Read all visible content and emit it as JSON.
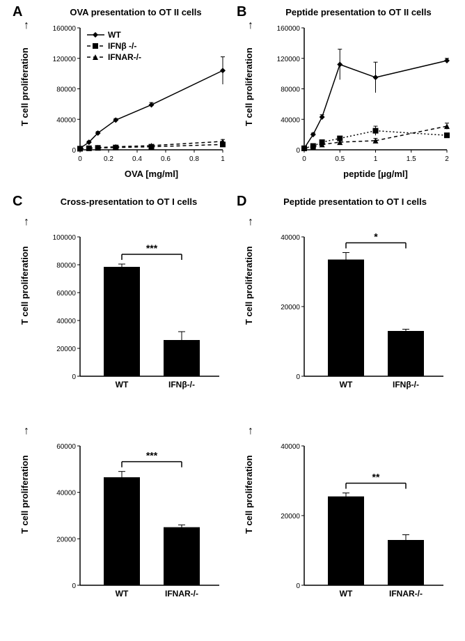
{
  "colors": {
    "line": "#000000",
    "bar": "#000000",
    "bg": "#ffffff",
    "text": "#000000"
  },
  "panel_labels": {
    "A": "A",
    "B": "B",
    "C": "C",
    "D": "D"
  },
  "panelA": {
    "title": "OVA presentation to OT II cells",
    "ylabel": "T cell proliferation",
    "xlabel": "OVA [mg/ml]",
    "xlim": [
      0,
      1.0
    ],
    "ylim": [
      0,
      160000
    ],
    "xticks": [
      0,
      0.2,
      0.4,
      0.6,
      0.8,
      1
    ],
    "yticks": [
      0,
      40000,
      80000,
      120000,
      160000
    ],
    "legend": [
      {
        "name": "WT",
        "marker": "diamond",
        "dash": "solid"
      },
      {
        "name": "IFNβ -/-",
        "marker": "square",
        "dash": "dash"
      },
      {
        "name": "IFNAR-/-",
        "marker": "triangle",
        "dash": "dash"
      }
    ],
    "series": {
      "WT": {
        "x": [
          0,
          0.0625,
          0.125,
          0.25,
          0.5,
          1
        ],
        "y": [
          2000,
          10000,
          22000,
          39000,
          59000,
          104000
        ],
        "err": [
          1000,
          1500,
          2000,
          2000,
          3000,
          18000
        ],
        "marker": "diamond",
        "dash": "solid"
      },
      "IFNb": {
        "x": [
          0,
          0.0625,
          0.125,
          0.25,
          0.5,
          1
        ],
        "y": [
          1500,
          2000,
          2500,
          3000,
          4000,
          7000
        ],
        "err": [
          500,
          700,
          800,
          900,
          1000,
          2000
        ],
        "marker": "square",
        "dash": "dash"
      },
      "IFNAR": {
        "x": [
          0,
          0.0625,
          0.125,
          0.25,
          0.5,
          1
        ],
        "y": [
          1500,
          2200,
          3000,
          4000,
          5500,
          11000
        ],
        "err": [
          500,
          700,
          900,
          1000,
          1200,
          2500
        ],
        "marker": "triangle",
        "dash": "dash"
      }
    }
  },
  "panelB": {
    "title": "Peptide presentation to OT II cells",
    "ylabel": "T cell proliferation",
    "xlabel": "peptide [µg/ml]",
    "xlim": [
      0,
      2.0
    ],
    "ylim": [
      0,
      160000
    ],
    "xticks": [
      0,
      0.5,
      1,
      1.5,
      2
    ],
    "yticks": [
      0,
      40000,
      80000,
      120000,
      160000
    ],
    "series": {
      "WT": {
        "x": [
          0,
          0.125,
          0.25,
          0.5,
          1,
          2
        ],
        "y": [
          2000,
          20000,
          43000,
          112000,
          95000,
          117000
        ],
        "err": [
          1000,
          2000,
          3000,
          20000,
          20000,
          3000
        ],
        "marker": "diamond",
        "dash": "solid"
      },
      "IFNb": {
        "x": [
          0,
          0.125,
          0.25,
          0.5,
          1,
          2
        ],
        "y": [
          2000,
          5000,
          10000,
          15000,
          25000,
          19000
        ],
        "err": [
          500,
          1000,
          1500,
          2000,
          6000,
          3000
        ],
        "marker": "square",
        "dash": "dot"
      },
      "IFNAR": {
        "x": [
          0,
          0.125,
          0.25,
          0.5,
          1,
          2
        ],
        "y": [
          2000,
          4000,
          7000,
          10000,
          12000,
          31000
        ],
        "err": [
          500,
          1000,
          1500,
          2000,
          3000,
          4000
        ],
        "marker": "triangle",
        "dash": "dash"
      }
    }
  },
  "panelC": {
    "title": "Cross-presentation to OT I cells",
    "ylabel": "T cell proliferation",
    "charts": [
      {
        "ylim": [
          0,
          100000
        ],
        "yticks": [
          0,
          20000,
          40000,
          60000,
          80000,
          100000
        ],
        "bars": [
          {
            "label": "WT",
            "val": 78500,
            "err": 2000
          },
          {
            "label": "IFNβ-/-",
            "val": 26000,
            "err": 6000
          }
        ],
        "sig": "***"
      },
      {
        "ylim": [
          0,
          60000
        ],
        "yticks": [
          0,
          20000,
          40000,
          60000
        ],
        "bars": [
          {
            "label": "WT",
            "val": 46500,
            "err": 2500
          },
          {
            "label": "IFNAR-/-",
            "val": 25000,
            "err": 1000
          }
        ],
        "sig": "***"
      }
    ]
  },
  "panelD": {
    "title": "Peptide presentation to OT I cells",
    "ylabel": "T cell proliferation",
    "charts": [
      {
        "ylim": [
          0,
          40000
        ],
        "yticks": [
          0,
          20000,
          40000
        ],
        "bars": [
          {
            "label": "WT",
            "val": 33500,
            "err": 2000
          },
          {
            "label": "IFNβ-/-",
            "val": 13000,
            "err": 500
          }
        ],
        "sig": "*"
      },
      {
        "ylim": [
          0,
          40000
        ],
        "yticks": [
          0,
          20000,
          40000
        ],
        "bars": [
          {
            "label": "WT",
            "val": 25500,
            "err": 1000
          },
          {
            "label": "IFNAR-/-",
            "val": 13000,
            "err": 1500
          }
        ],
        "sig": "**"
      }
    ]
  }
}
